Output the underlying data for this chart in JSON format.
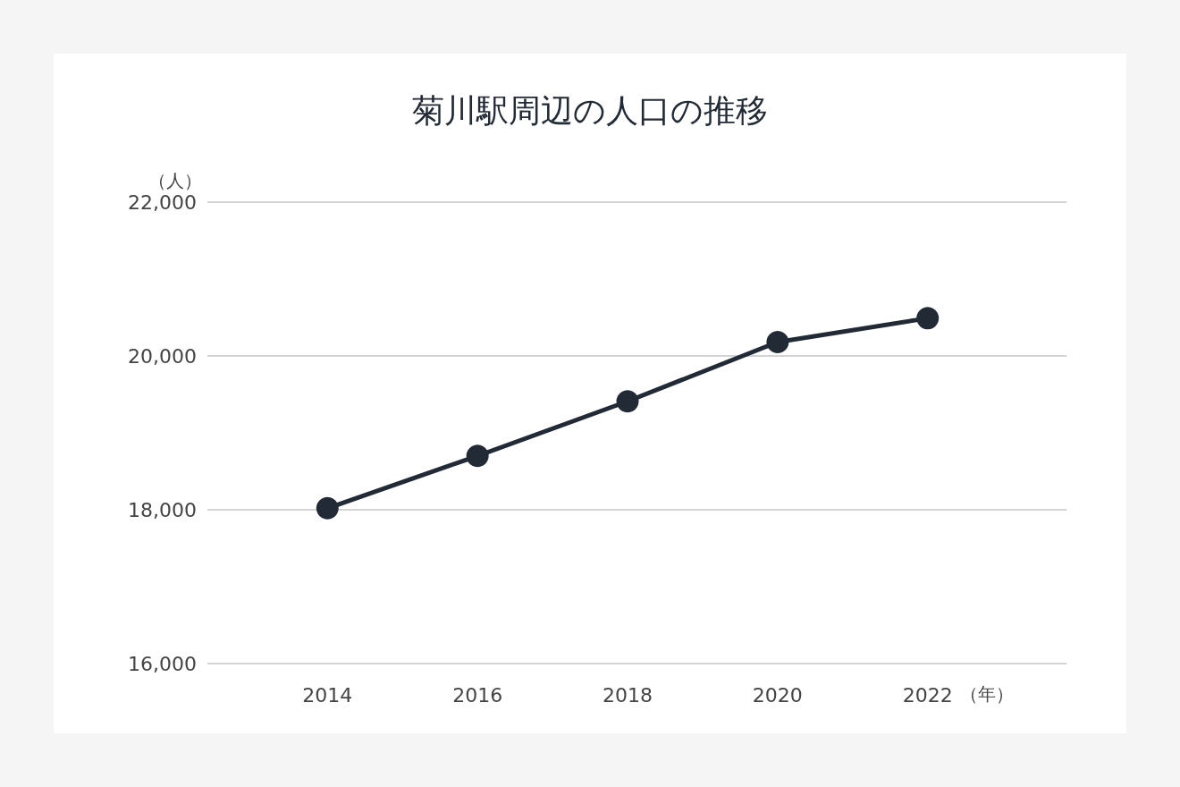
{
  "chart_data": {
    "type": "line",
    "title": "菊川駅周辺の人口の推移",
    "xlabel": "（年）",
    "ylabel": "（人）",
    "x": [
      2014,
      2016,
      2018,
      2020,
      2022
    ],
    "series": [
      {
        "color": "#212a35",
        "values": [
          18020,
          18700,
          19410,
          20180,
          20490
        ]
      }
    ],
    "xlim": [
      2012.4,
      2023.85
    ],
    "xticks": [
      2014,
      2016,
      2018,
      2020,
      2022
    ],
    "ylim": [
      16000,
      22000
    ],
    "yticks": [
      {
        "value": 16000,
        "label": "16,000"
      },
      {
        "value": 18000,
        "label": "18,000"
      },
      {
        "value": 20000,
        "label": "20,000"
      },
      {
        "value": 22000,
        "label": "22,000"
      }
    ],
    "grid": "y",
    "marker": "circle",
    "line_style": "solid"
  }
}
